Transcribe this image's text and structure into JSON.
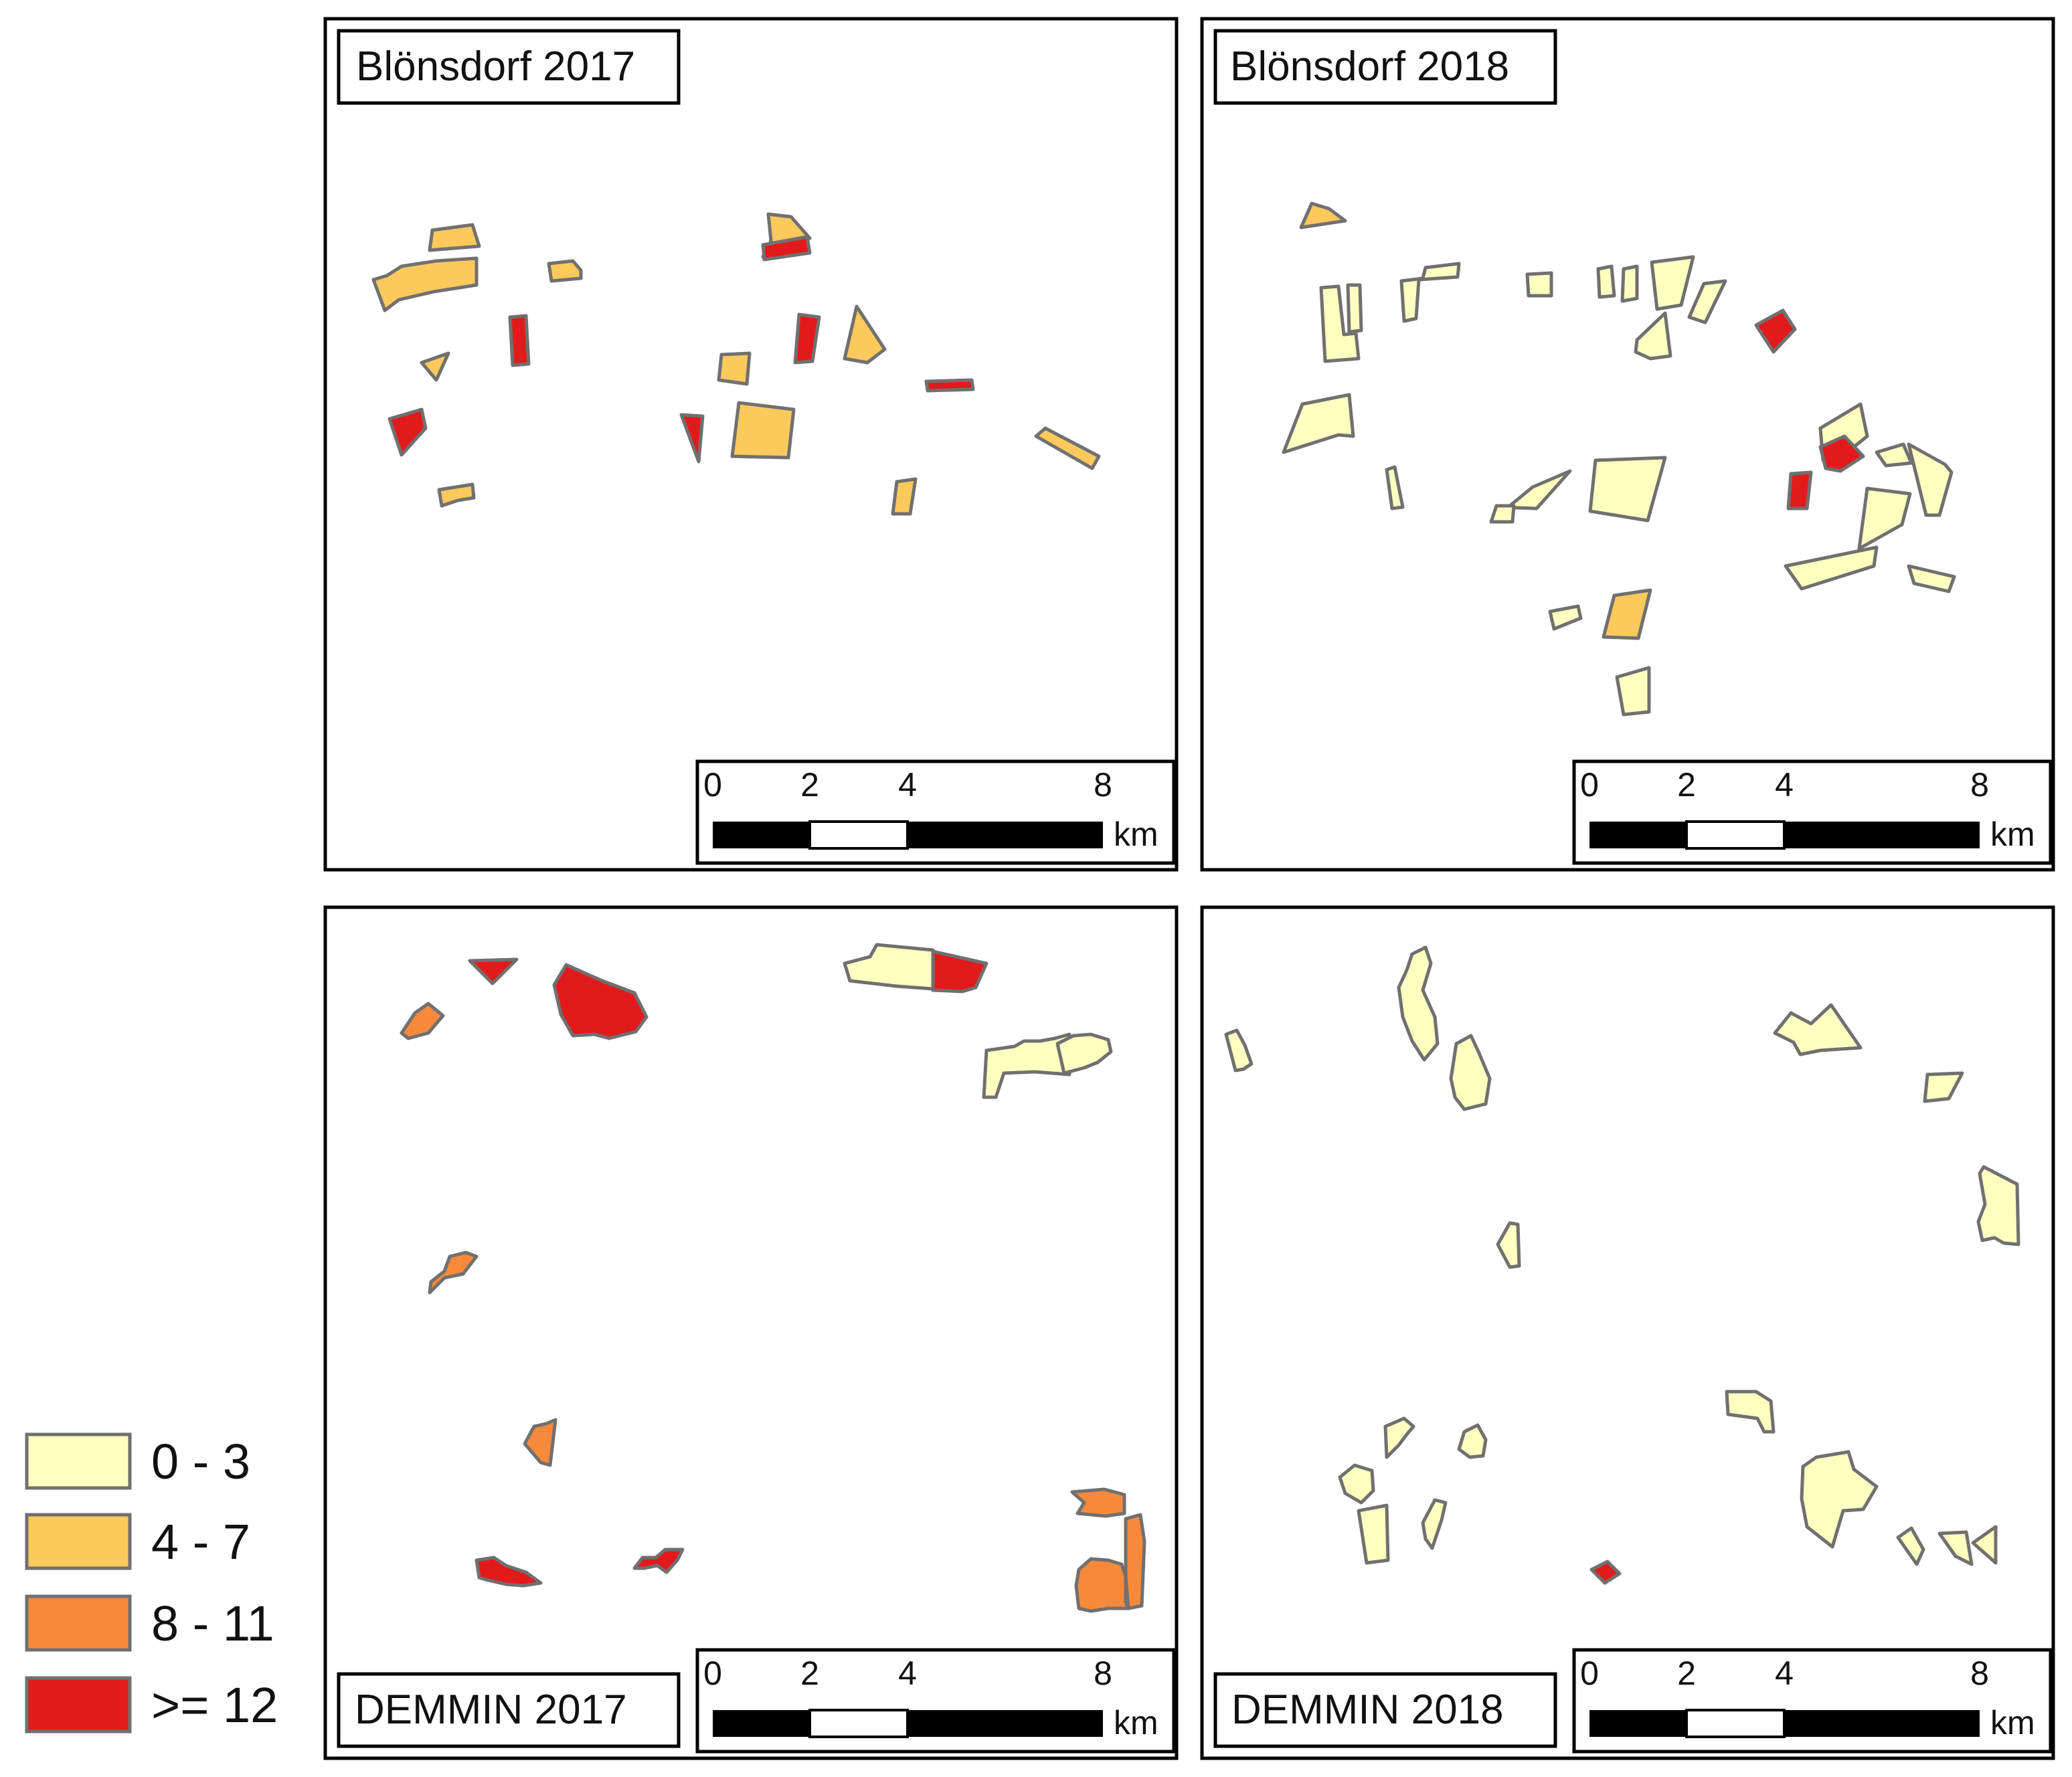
{
  "legend": {
    "items": [
      {
        "label": "0 - 3",
        "color": "#ffffc0"
      },
      {
        "label": "4 - 7",
        "color": "#fbc95c"
      },
      {
        "label": "8 - 11",
        "color": "#f9893a"
      },
      {
        "label": ">= 12",
        "color": "#e31a1c"
      }
    ]
  },
  "panels": [
    {
      "title": "Blönsdorf 2017"
    },
    {
      "title": "Blönsdorf 2018"
    },
    {
      "title": "DEMMIN 2017"
    },
    {
      "title": "DEMMIN 2018"
    }
  ],
  "scalebar": {
    "ticks": [
      "0",
      "2",
      "4",
      "8"
    ],
    "unit": "km"
  },
  "colors": {
    "outline": "#707070",
    "frame": "#000000"
  }
}
